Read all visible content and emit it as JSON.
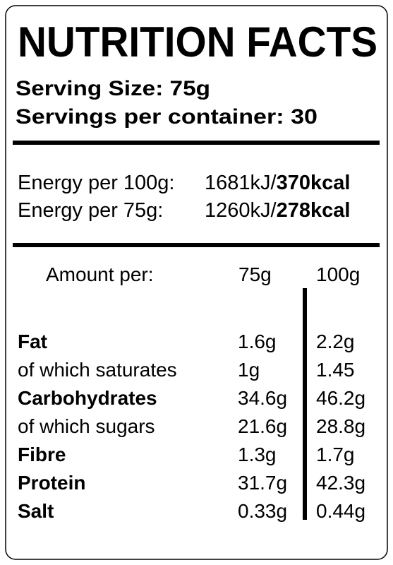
{
  "title": "NUTRITION FACTS",
  "serving_size": "Serving Size: 75g",
  "servings_per_container": "Servings per container: 30",
  "energy": [
    {
      "label": "Energy per 100g:",
      "kj": "1681kJ/",
      "kcal": "370kcal"
    },
    {
      "label": "Energy per 75g:",
      "kj": "1260kJ/",
      "kcal": "278kcal"
    }
  ],
  "table": {
    "header": [
      "Amount per:",
      "75g",
      "100g"
    ],
    "rows": [
      [
        "Fat",
        "1.6g",
        "2.2g"
      ],
      [
        "of which saturates",
        "1g",
        "1.45"
      ],
      [
        "Carbohydrates",
        "34.6g",
        "46.2g"
      ],
      [
        "of which sugars",
        "21.6g",
        "28.8g"
      ],
      [
        "Fibre",
        "1.3g",
        "1.7g"
      ],
      [
        "Protein",
        "31.7g",
        "42.3g"
      ],
      [
        "Salt",
        "0.33g",
        "0.44g"
      ]
    ]
  }
}
